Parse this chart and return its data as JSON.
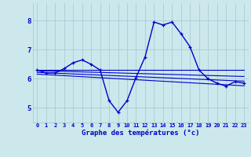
{
  "bg_color": "#cce8ec",
  "grid_color": "#a8cdd4",
  "line_color": "#0000cc",
  "xlabel": "Graphe des températures (°c)",
  "ylabel_ticks": [
    5,
    6,
    7,
    8
  ],
  "xlim": [
    -0.5,
    23.5
  ],
  "ylim": [
    4.5,
    8.6
  ],
  "xtick_labels": [
    "0",
    "1",
    "2",
    "3",
    "4",
    "5",
    "6",
    "7",
    "8",
    "9",
    "10",
    "11",
    "12",
    "13",
    "14",
    "15",
    "16",
    "17",
    "18",
    "19",
    "20",
    "21",
    "22",
    "23"
  ],
  "series": [
    {
      "x": [
        0,
        1,
        2,
        3,
        4,
        5,
        6,
        7,
        8,
        9,
        10,
        11,
        12,
        13,
        14,
        15,
        16,
        17,
        18,
        19,
        20,
        21,
        22,
        23
      ],
      "y": [
        6.3,
        6.2,
        6.2,
        6.35,
        6.55,
        6.65,
        6.5,
        6.3,
        5.25,
        4.85,
        5.25,
        6.05,
        6.75,
        7.95,
        7.85,
        7.95,
        7.55,
        7.1,
        6.3,
        6.0,
        5.85,
        5.75,
        5.9,
        5.85
      ],
      "has_markers": true,
      "lw": 1.0,
      "ms": 3.0
    },
    {
      "x": [
        0,
        18,
        23
      ],
      "y": [
        6.3,
        6.3,
        6.3
      ],
      "has_markers": false,
      "lw": 0.8
    },
    {
      "x": [
        0,
        23
      ],
      "y": [
        6.28,
        6.08
      ],
      "has_markers": false,
      "lw": 0.8
    },
    {
      "x": [
        0,
        23
      ],
      "y": [
        6.22,
        5.92
      ],
      "has_markers": false,
      "lw": 0.8
    },
    {
      "x": [
        0,
        23
      ],
      "y": [
        6.16,
        5.76
      ],
      "has_markers": false,
      "lw": 0.8
    }
  ]
}
